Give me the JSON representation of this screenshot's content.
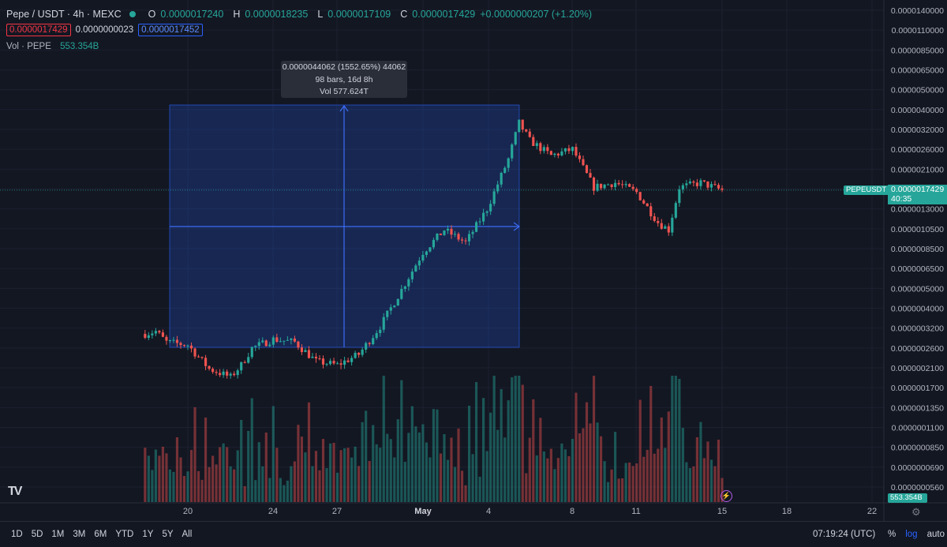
{
  "header": {
    "title": "Pepe / USDT · 4h · MEXC",
    "o_label": "O",
    "o": "0.0000017240",
    "h_label": "H",
    "h": "0.0000018235",
    "l_label": "L",
    "l": "0.0000017109",
    "c_label": "C",
    "c": "0.0000017429",
    "change": "+0.0000000207 (+1.20%)"
  },
  "quote": {
    "bid": "0.0000017429",
    "spread": "0.0000000023",
    "ask": "0.0000017452"
  },
  "volume_legend": {
    "label": "Vol · PEPE",
    "value": "553.354B"
  },
  "measure": {
    "line1": "0.0000044062 (1552.65%) 44062",
    "line2": "98 bars, 16d 8h",
    "line3": "Vol 577.624T"
  },
  "price_tag": {
    "symbol": "PEPEUSDT",
    "price": "0.0000017429",
    "countdown": "40:35"
  },
  "volume_tag": "553.354B",
  "timeframes": [
    "1D",
    "5D",
    "1M",
    "3M",
    "6M",
    "YTD",
    "1Y",
    "5Y",
    "All"
  ],
  "clock": "07:19:24 (UTC)",
  "tools": {
    "percent": "%",
    "log": "log",
    "auto": "auto"
  },
  "colors": {
    "up": "#26a69a",
    "down": "#ef5350",
    "background": "#131722",
    "measure": "#2962ff"
  },
  "chart_data": {
    "type": "candlestick",
    "symbol": "PEPE/USDT",
    "interval": "4h",
    "scale": "log",
    "y_ticks": [
      "0.0000140000",
      "0.0000110000",
      "0.0000085000",
      "0.0000065000",
      "0.0000050000",
      "0.0000040000",
      "0.0000032000",
      "0.0000026000",
      "0.0000021000",
      "0.0000016000",
      "0.0000013000",
      "0.0000010500",
      "0.0000008500",
      "0.0000006500",
      "0.0000005000",
      "0.0000004000",
      "0.0000003200",
      "0.0000002600",
      "0.0000002100",
      "0.0000001700",
      "0.0000001350",
      "0.0000001100",
      "0.0000000850",
      "0.0000000690",
      "0.0000000560"
    ],
    "x_ticks": [
      "20",
      "24",
      "27",
      "May",
      "4",
      "8",
      "11",
      "15",
      "18",
      "22"
    ],
    "close_path": [
      [
        "2023-04-18",
        3.3e-07
      ],
      [
        "2023-04-18 12h",
        3.4e-07
      ],
      [
        "2023-04-19",
        3e-07
      ],
      [
        "2023-04-20",
        2.9e-07
      ],
      [
        "2023-04-21",
        2.2e-07
      ],
      [
        "2023-04-22",
        2e-07
      ],
      [
        "2023-04-22 12h",
        2.3e-07
      ],
      [
        "2023-04-23",
        2.8e-07
      ],
      [
        "2023-04-24",
        3.1e-07
      ],
      [
        "2023-04-25",
        3e-07
      ],
      [
        "2023-04-26",
        2.4e-07
      ],
      [
        "2023-04-27",
        2.3e-07
      ],
      [
        "2023-04-28",
        2.6e-07
      ],
      [
        "2023-04-29",
        3.6e-07
      ],
      [
        "2023-04-30",
        5.5e-07
      ],
      [
        "2023-05-01",
        8.5e-07
      ],
      [
        "2023-05-02",
        1.1e-06
      ],
      [
        "2023-05-03",
        9.5e-07
      ],
      [
        "2023-05-04",
        1.4e-06
      ],
      [
        "2023-05-05",
        2.5e-06
      ],
      [
        "2023-05-05 12h",
        3.8e-06
      ],
      [
        "2023-05-06",
        3.1e-06
      ],
      [
        "2023-05-07",
        2.6e-06
      ],
      [
        "2023-05-08",
        2.8e-06
      ],
      [
        "2023-05-09",
        1.8e-06
      ],
      [
        "2023-05-10",
        1.9e-06
      ],
      [
        "2023-05-11",
        1.7e-06
      ],
      [
        "2023-05-12",
        1.2e-06
      ],
      [
        "2023-05-12 12h",
        1.1e-06
      ],
      [
        "2023-05-13",
        1.8e-06
      ],
      [
        "2023-05-14",
        1.9e-06
      ],
      [
        "2023-05-15",
        1.7429e-06
      ]
    ]
  }
}
